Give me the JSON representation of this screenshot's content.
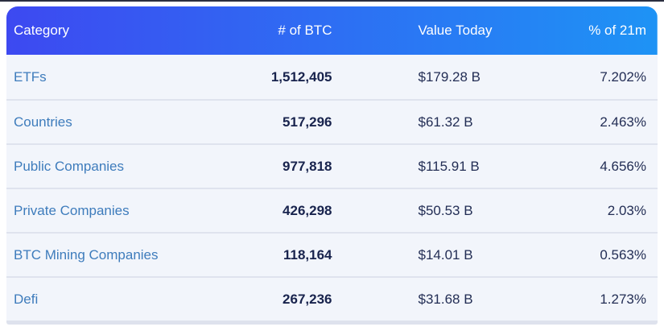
{
  "table": {
    "columns": [
      {
        "label": "Category"
      },
      {
        "label": "# of BTC"
      },
      {
        "label": "Value Today"
      },
      {
        "label": "% of 21m"
      }
    ],
    "rows": [
      {
        "category": "ETFs",
        "btc": "1,512,405",
        "value": "$179.28 B",
        "pct": "7.202%"
      },
      {
        "category": "Countries",
        "btc": "517,296",
        "value": "$61.32 B",
        "pct": "2.463%"
      },
      {
        "category": "Public Companies",
        "btc": "977,818",
        "value": "$115.91 B",
        "pct": "4.656%"
      },
      {
        "category": "Private Companies",
        "btc": "426,298",
        "value": "$50.53 B",
        "pct": "2.03%"
      },
      {
        "category": "BTC Mining Companies",
        "btc": "118,164",
        "value": "$14.01 B",
        "pct": "0.563%"
      },
      {
        "category": "Defi",
        "btc": "267,236",
        "value": "$31.68 B",
        "pct": "1.273%"
      }
    ],
    "colors": {
      "header_gradient_start": "#3d49f1",
      "header_gradient_end": "#1e93f5",
      "header_text": "#ffffff",
      "category_text": "#3e7cbc",
      "number_bold_text": "#18234d",
      "number_text": "#232e55",
      "row_bg": "#f2f5fb",
      "divider": "#dfe3ee",
      "bottom_edge": "#dee2ed",
      "top_divider": "#2b2f40"
    }
  }
}
